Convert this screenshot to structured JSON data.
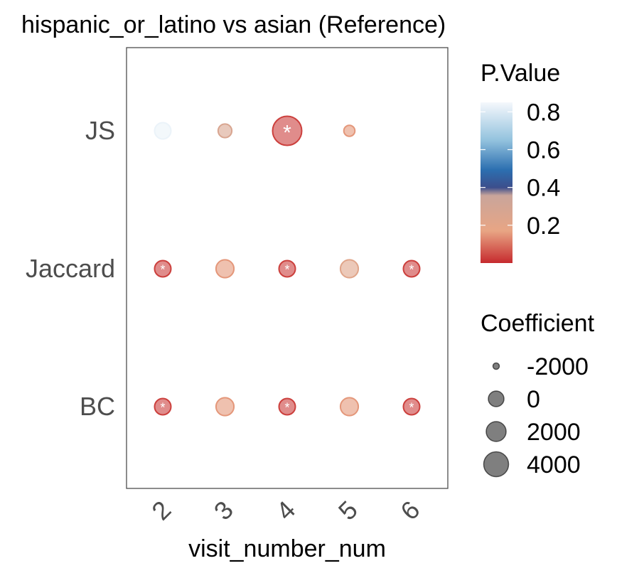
{
  "chart_data": {
    "type": "scatter",
    "title": "hispanic_or_latino vs asian (Reference)",
    "xlabel": "visit_number_num",
    "ylabel": "",
    "x_categories": [
      "2",
      "3",
      "4",
      "5",
      "6"
    ],
    "y_categories": [
      "JS",
      "Jaccard",
      "BC"
    ],
    "color_legend": {
      "title": "P.Value",
      "ticks": [
        0.8,
        0.6,
        0.4,
        0.2
      ],
      "tick_labels": [
        "0.8",
        "0.6",
        "0.4",
        "0.2"
      ],
      "range": [
        0.0,
        0.85
      ]
    },
    "size_legend": {
      "title": "Coefficient",
      "values": [
        -2000,
        0,
        2000,
        4000
      ],
      "labels": [
        "-2000",
        "0",
        "2000",
        "4000"
      ]
    },
    "points": [
      {
        "x": "2",
        "y": "JS",
        "p_value": 0.83,
        "coefficient": 0,
        "significant": false
      },
      {
        "x": "3",
        "y": "JS",
        "p_value": 0.27,
        "coefficient": -1200,
        "significant": false
      },
      {
        "x": "4",
        "y": "JS",
        "p_value": 0.03,
        "coefficient": 5800,
        "significant": true
      },
      {
        "x": "5",
        "y": "JS",
        "p_value": 0.15,
        "coefficient": -2400,
        "significant": false
      },
      {
        "x": "2",
        "y": "Jaccard",
        "p_value": 0.03,
        "coefficient": 0,
        "significant": true
      },
      {
        "x": "3",
        "y": "Jaccard",
        "p_value": 0.15,
        "coefficient": 700,
        "significant": false
      },
      {
        "x": "4",
        "y": "Jaccard",
        "p_value": 0.03,
        "coefficient": 0,
        "significant": true
      },
      {
        "x": "5",
        "y": "Jaccard",
        "p_value": 0.22,
        "coefficient": 700,
        "significant": false
      },
      {
        "x": "6",
        "y": "Jaccard",
        "p_value": 0.03,
        "coefficient": 0,
        "significant": true
      },
      {
        "x": "2",
        "y": "BC",
        "p_value": 0.03,
        "coefficient": 0,
        "significant": true
      },
      {
        "x": "3",
        "y": "BC",
        "p_value": 0.15,
        "coefficient": 700,
        "significant": false
      },
      {
        "x": "4",
        "y": "BC",
        "p_value": 0.03,
        "coefficient": 0,
        "significant": true
      },
      {
        "x": "5",
        "y": "BC",
        "p_value": 0.15,
        "coefficient": 700,
        "significant": false
      },
      {
        "x": "6",
        "y": "BC",
        "p_value": 0.03,
        "coefficient": 0,
        "significant": true
      }
    ],
    "significance_marker": "*",
    "grid": false,
    "legend_position": "right",
    "colors": {
      "p_0.0": "#c62a2e",
      "p_0.17": "#e8a584",
      "p_0.40": "#3c4e8c",
      "p_0.49": "#2c6fb0",
      "p_0.65": "#91c1dd",
      "p_0.85": "#f5f8fc",
      "point_alpha": "0.6"
    }
  }
}
